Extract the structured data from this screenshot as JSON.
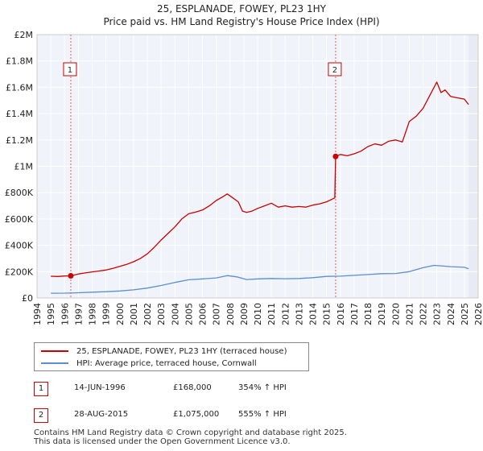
{
  "chart_data": {
    "type": "line",
    "title": "25, ESPLANADE, FOWEY, PL23 1HY",
    "subtitle": "Price paid vs. HM Land Registry's House Price Index (HPI)",
    "xlabel": "",
    "ylabel": "",
    "xlim": [
      1994,
      2026
    ],
    "ylim": [
      0,
      2000000
    ],
    "x_ticks": [
      "1994",
      "1995",
      "1996",
      "1997",
      "1998",
      "1999",
      "2000",
      "2001",
      "2002",
      "2003",
      "2004",
      "2005",
      "2006",
      "2007",
      "2008",
      "2009",
      "2010",
      "2011",
      "2012",
      "2013",
      "2014",
      "2015",
      "2016",
      "2017",
      "2018",
      "2019",
      "2020",
      "2021",
      "2022",
      "2023",
      "2024",
      "2025",
      "2026"
    ],
    "y_ticks": [
      {
        "value": 0,
        "label": "£0"
      },
      {
        "value": 200000,
        "label": "£200K"
      },
      {
        "value": 400000,
        "label": "£400K"
      },
      {
        "value": 600000,
        "label": "£600K"
      },
      {
        "value": 800000,
        "label": "£800K"
      },
      {
        "value": 1000000,
        "label": "£1M"
      },
      {
        "value": 1200000,
        "label": "£1.2M"
      },
      {
        "value": 1400000,
        "label": "£1.4M"
      },
      {
        "value": 1600000,
        "label": "£1.6M"
      },
      {
        "value": 1800000,
        "label": "£1.8M"
      },
      {
        "value": 2000000,
        "label": "£2M"
      }
    ],
    "grid": true,
    "series": [
      {
        "name": "25, ESPLANADE, FOWEY, PL23 1HY (terraced house)",
        "color": "#cc0000",
        "x": [
          1995.0,
          1995.5,
          1996.0,
          1996.45,
          1997.0,
          1997.5,
          1998.0,
          1998.5,
          1999.0,
          1999.5,
          2000.0,
          2000.5,
          2001.0,
          2001.5,
          2002.0,
          2002.5,
          2003.0,
          2003.5,
          2004.0,
          2004.5,
          2005.0,
          2005.5,
          2006.0,
          2006.5,
          2007.0,
          2007.5,
          2007.8,
          2008.2,
          2008.6,
          2008.9,
          2009.2,
          2009.6,
          2010.0,
          2010.5,
          2011.0,
          2011.5,
          2012.0,
          2012.5,
          2013.0,
          2013.5,
          2014.0,
          2014.5,
          2015.0,
          2015.3,
          2015.6,
          2015.66,
          2016.0,
          2016.5,
          2017.0,
          2017.5,
          2018.0,
          2018.5,
          2019.0,
          2019.5,
          2020.0,
          2020.5,
          2021.0,
          2021.5,
          2022.0,
          2022.5,
          2022.8,
          2023.0,
          2023.3,
          2023.6,
          2024.0,
          2024.5,
          2025.0,
          2025.3
        ],
        "values": [
          165000,
          163000,
          167000,
          168000,
          182000,
          190000,
          198000,
          205000,
          212000,
          225000,
          240000,
          255000,
          275000,
          300000,
          335000,
          385000,
          440000,
          490000,
          540000,
          600000,
          640000,
          652000,
          668000,
          700000,
          740000,
          770000,
          790000,
          760000,
          730000,
          660000,
          650000,
          660000,
          680000,
          700000,
          720000,
          690000,
          700000,
          690000,
          695000,
          690000,
          705000,
          715000,
          730000,
          745000,
          760000,
          1075000,
          1090000,
          1080000,
          1095000,
          1115000,
          1150000,
          1170000,
          1160000,
          1190000,
          1200000,
          1185000,
          1340000,
          1380000,
          1440000,
          1540000,
          1600000,
          1640000,
          1560000,
          1580000,
          1530000,
          1520000,
          1510000,
          1470000
        ]
      },
      {
        "name": "HPI: Average price, terraced house, Cornwall",
        "color": "#5b8fd0",
        "x": [
          1995.0,
          1996.0,
          1997.0,
          1998.0,
          1999.0,
          2000.0,
          2001.0,
          2002.0,
          2003.0,
          2004.0,
          2005.0,
          2006.0,
          2007.0,
          2007.8,
          2008.5,
          2009.2,
          2010.0,
          2011.0,
          2012.0,
          2013.0,
          2014.0,
          2015.0,
          2016.0,
          2017.0,
          2018.0,
          2019.0,
          2020.0,
          2021.0,
          2022.0,
          2022.8,
          2023.5,
          2024.0,
          2025.0,
          2025.3
        ],
        "values": [
          36000,
          37000,
          40000,
          44000,
          48000,
          53000,
          62000,
          75000,
          95000,
          118000,
          138000,
          145000,
          152000,
          170000,
          160000,
          140000,
          145000,
          148000,
          146000,
          148000,
          154000,
          164000,
          166000,
          172000,
          178000,
          185000,
          186000,
          200000,
          230000,
          248000,
          242000,
          238000,
          233000,
          222000
        ]
      }
    ],
    "sale_markers": [
      {
        "label": "1",
        "x": 1996.45,
        "y": 168000
      },
      {
        "label": "2",
        "x": 2015.66,
        "y": 1075000
      }
    ]
  },
  "legend": {
    "items": [
      {
        "label": "25, ESPLANADE, FOWEY, PL23 1HY (terraced house)",
        "color": "#cc0000"
      },
      {
        "label": "HPI: Average price, terraced house, Cornwall",
        "color": "#5b8fd0"
      }
    ]
  },
  "sales": [
    {
      "num": "1",
      "date": "14-JUN-1996",
      "price": "£168,000",
      "hpi": "354% ↑ HPI"
    },
    {
      "num": "2",
      "date": "28-AUG-2015",
      "price": "£1,075,000",
      "hpi": "555% ↑ HPI"
    }
  ],
  "footer": {
    "line1": "Contains HM Land Registry data © Crown copyright and database right 2025.",
    "line2": "This data is licensed under the Open Government Licence v3.0."
  }
}
